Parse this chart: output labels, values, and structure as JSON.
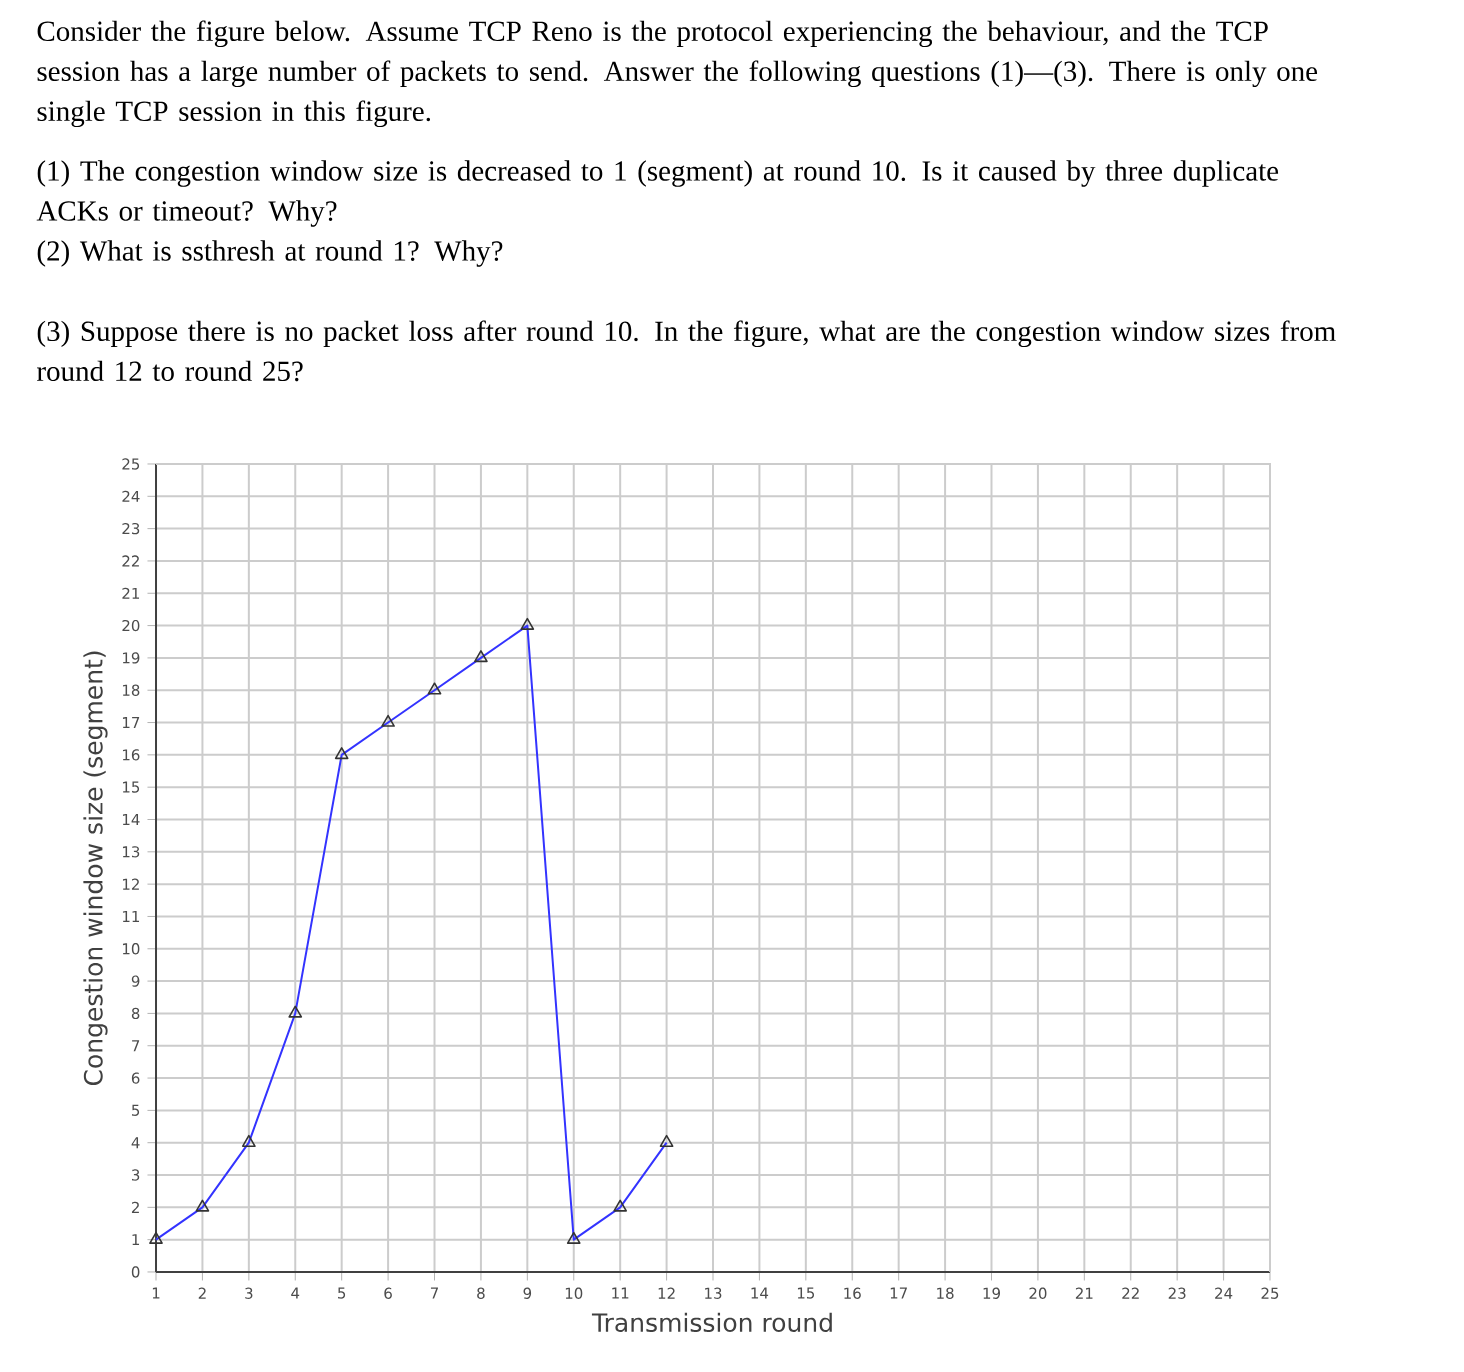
{
  "chart_data": {
    "type": "line",
    "title": "Consider the figure below. Assume TCP Reno is the protocol experiencing the behaviour, and the TCP session has a large number of packets to send. Answer the following questions (1)—(3). There is only one single TCP session in this figure.",
    "annotations": [
      "(1) The congestion window size is decreased to 1 (segment) at round 10. Is it caused by three duplicate ACKs or timeout? Why?",
      "(2) What is ssthresh at round 1? Why?",
      "(3) Suppose there is no packet loss after round 10. In the figure, what are the congestion window sizes from round 12 to round 25?"
    ],
    "xlabel": "Transmission round",
    "ylabel": "Congestion window size (segment)",
    "x": [
      1,
      2,
      3,
      4,
      5,
      6,
      7,
      8,
      9,
      10,
      11,
      12
    ],
    "values": [
      1,
      2,
      4,
      8,
      16,
      17,
      18,
      19,
      20,
      1,
      2,
      4
    ],
    "color": "#3333ff",
    "marker": "triangle",
    "grid": true,
    "xlim": [
      1,
      25
    ],
    "ylim": [
      0,
      25
    ],
    "xticks": [
      1,
      2,
      3,
      4,
      5,
      6,
      7,
      8,
      9,
      10,
      11,
      12,
      13,
      14,
      15,
      16,
      17,
      18,
      19,
      20,
      21,
      22,
      23,
      24,
      25
    ],
    "yticks": [
      0,
      1,
      2,
      3,
      4,
      5,
      6,
      7,
      8,
      9,
      10,
      11,
      12,
      13,
      14,
      15,
      16,
      17,
      18,
      19,
      20,
      21,
      22,
      23,
      24,
      25
    ]
  }
}
